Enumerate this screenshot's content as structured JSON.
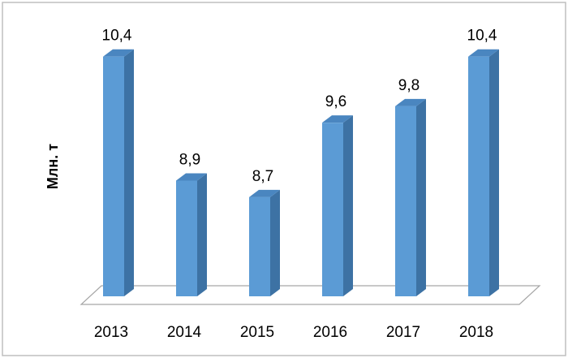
{
  "chart_data": {
    "type": "bar3d",
    "y_label": "Млн. т",
    "categories": [
      "2013",
      "2014",
      "2015",
      "2016",
      "2017",
      "2018"
    ],
    "values": [
      10.4,
      8.9,
      8.7,
      9.6,
      9.8,
      10.4
    ],
    "value_labels": [
      "10,4",
      "8,9",
      "8,7",
      "9,6",
      "9,8",
      "10,4"
    ],
    "color": "#5b9bd5",
    "ylim": [
      7.5,
      10.8
    ]
  }
}
